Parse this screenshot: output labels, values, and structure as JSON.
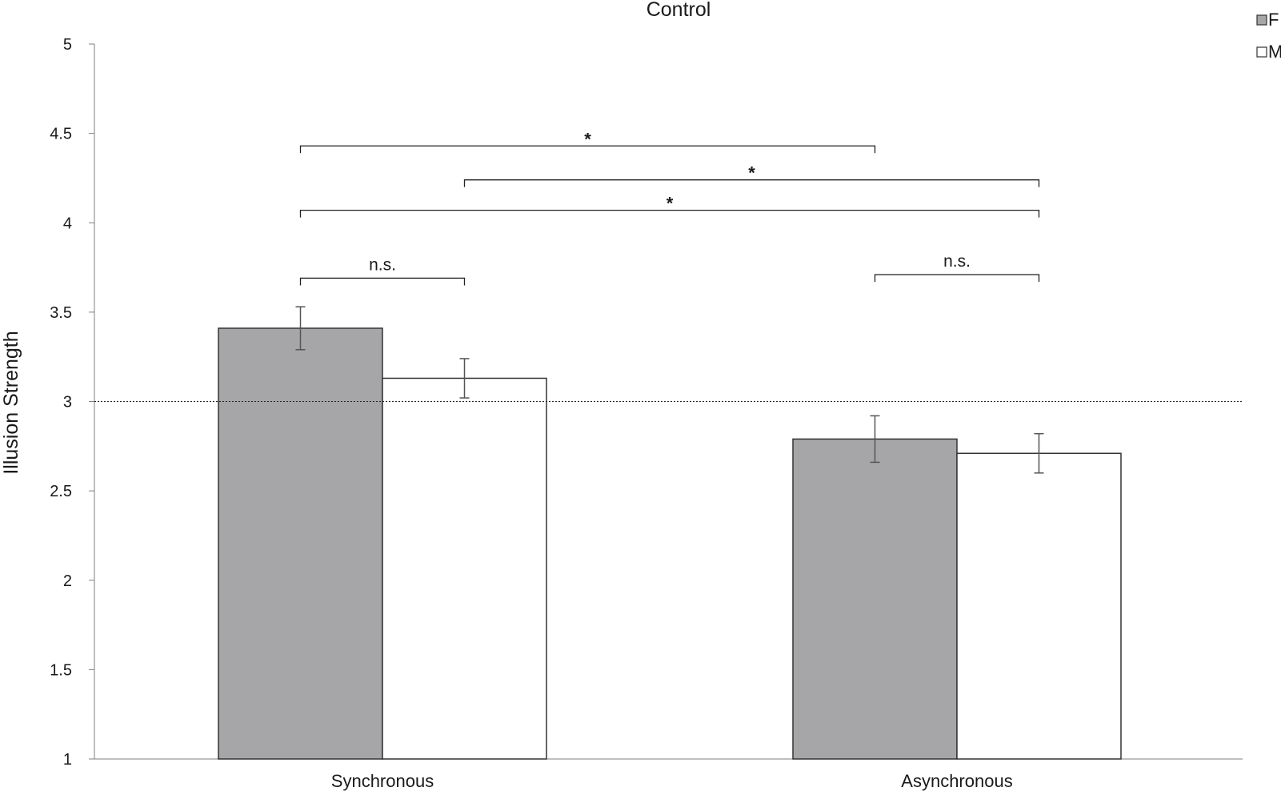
{
  "chart_data": {
    "type": "bar",
    "title": "Control",
    "xlabel": "",
    "ylabel": "Illusion Strength",
    "ylim": [
      1,
      5
    ],
    "yticks": [
      "1",
      "1.5",
      "2",
      "2.5",
      "3",
      "3.5",
      "4",
      "4.5",
      "5"
    ],
    "categories": [
      "Synchronous",
      "Asynchronous"
    ],
    "series": [
      {
        "name": "F",
        "color": "#a6a6a8",
        "values": [
          3.41,
          2.79
        ],
        "errors": [
          0.12,
          0.13
        ]
      },
      {
        "name": "M",
        "color": "#ffffff",
        "values": [
          3.13,
          2.71
        ],
        "errors": [
          0.11,
          0.11
        ]
      }
    ],
    "reference_line": 3,
    "legend_position": "top-right",
    "grid": false,
    "annotations": [
      {
        "label": "*",
        "from": [
          "Synchronous",
          "F"
        ],
        "to": [
          "Asynchronous",
          "F"
        ],
        "level": 4.43
      },
      {
        "label": "*",
        "from": [
          "Synchronous",
          "M"
        ],
        "to": [
          "Asynchronous",
          "M"
        ],
        "level": 4.24
      },
      {
        "label": "*",
        "from": [
          "Synchronous",
          "F"
        ],
        "to": [
          "Asynchronous",
          "M"
        ],
        "level": 4.07
      },
      {
        "label": "n.s.",
        "from": [
          "Synchronous",
          "F"
        ],
        "to": [
          "Synchronous",
          "M"
        ],
        "level": 3.69
      },
      {
        "label": "n.s.",
        "from": [
          "Asynchronous",
          "F"
        ],
        "to": [
          "Asynchronous",
          "M"
        ],
        "level": 3.71
      }
    ]
  }
}
